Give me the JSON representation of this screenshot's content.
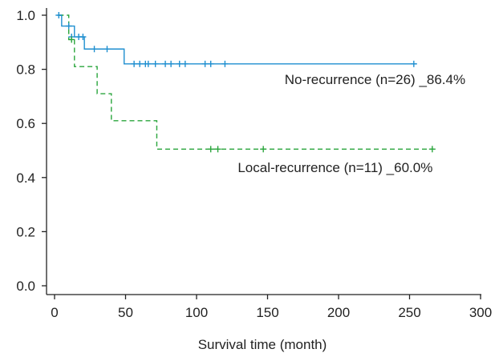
{
  "chart_data": {
    "type": "line",
    "title": "",
    "xlabel": "Survival time (month)",
    "ylabel": "",
    "xlim": [
      0,
      300
    ],
    "ylim": [
      0,
      1.0
    ],
    "x_ticks": [
      0,
      50,
      100,
      150,
      200,
      250,
      300
    ],
    "x_tick_labels": [
      "0",
      "50",
      "100",
      "150",
      "200",
      "250",
      "300"
    ],
    "y_ticks": [
      0,
      0.2,
      0.4,
      0.6,
      0.8,
      1.0
    ],
    "y_tick_labels": [
      "0.0",
      "0.2",
      "0.4",
      "0.6",
      "0.8",
      "1.0"
    ],
    "grid": false,
    "series": [
      {
        "color": "#1f8fd0",
        "dash": "solid",
        "steps": [
          [
            2,
            1.0
          ],
          [
            5,
            0.96
          ],
          [
            14,
            0.92
          ],
          [
            21,
            0.875
          ],
          [
            49,
            0.82
          ],
          [
            255,
            0.82
          ]
        ],
        "censored": [
          [
            3,
            1.0
          ],
          [
            10,
            0.96
          ],
          [
            12,
            0.92
          ],
          [
            17,
            0.92
          ],
          [
            20,
            0.92
          ],
          [
            28,
            0.875
          ],
          [
            37,
            0.875
          ],
          [
            56,
            0.82
          ],
          [
            60,
            0.82
          ],
          [
            64,
            0.82
          ],
          [
            66,
            0.82
          ],
          [
            71,
            0.82
          ],
          [
            78,
            0.82
          ],
          [
            82,
            0.82
          ],
          [
            88,
            0.82
          ],
          [
            92,
            0.82
          ],
          [
            106,
            0.82
          ],
          [
            110,
            0.82
          ],
          [
            120,
            0.82
          ],
          [
            253,
            0.82
          ]
        ]
      },
      {
        "color": "#2aa53c",
        "dash": "dashed",
        "steps": [
          [
            3,
            1.0
          ],
          [
            10,
            0.91
          ],
          [
            14,
            0.81
          ],
          [
            30,
            0.71
          ],
          [
            40,
            0.61
          ],
          [
            72,
            0.505
          ],
          [
            267,
            0.505
          ]
        ],
        "censored": [
          [
            12,
            0.91
          ],
          [
            110,
            0.505
          ],
          [
            115,
            0.505
          ],
          [
            147,
            0.505
          ],
          [
            266,
            0.505
          ]
        ]
      }
    ],
    "annotations": [
      {
        "text": "No-recurrence (n=26) _86.4%",
        "x": 162,
        "y": 0.745
      },
      {
        "text": "Local-recurrence (n=11) _60.0%",
        "x": 129,
        "y": 0.42
      }
    ]
  }
}
